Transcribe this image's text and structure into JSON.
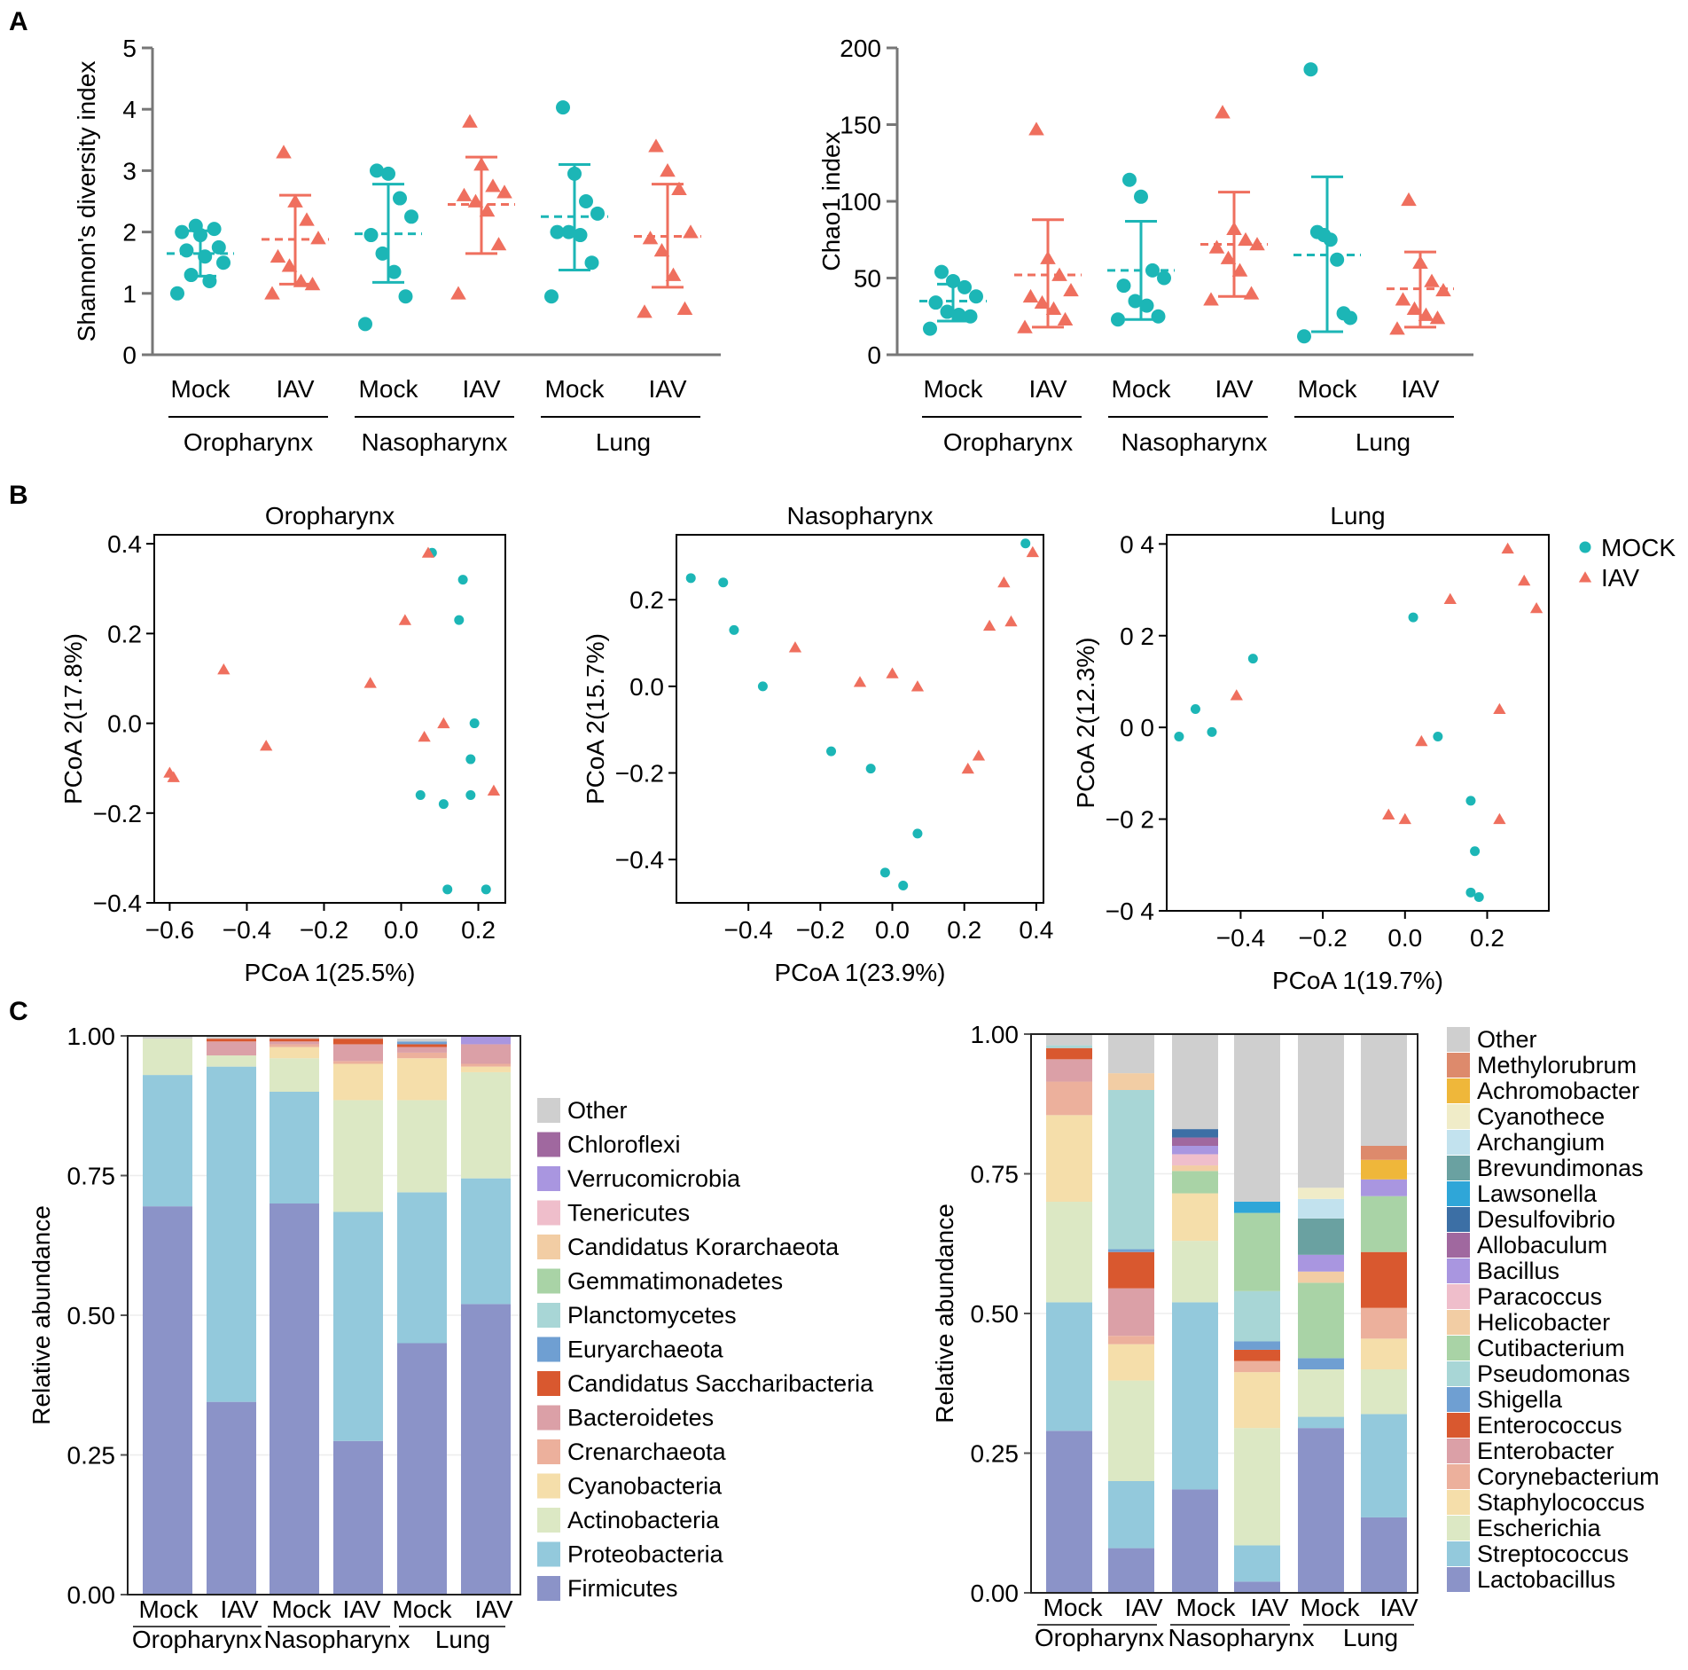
{
  "colors": {
    "mock": "#1cb6b6",
    "iav": "#ef6f5e",
    "axis": "#777777"
  },
  "panel_labels": [
    "A",
    "B",
    "C"
  ],
  "group_labels": {
    "samples": [
      "Mock",
      "IAV",
      "Mock",
      "IAV",
      "Mock",
      "IAV"
    ],
    "sites": [
      "Oropharynx",
      "Nasopharynx",
      "Lung"
    ]
  },
  "legend_b": [
    {
      "name": "MOCK",
      "series": "mock"
    },
    {
      "name": "IAV",
      "series": "iav"
    }
  ],
  "chart_data": [
    {
      "id": "shannon",
      "type": "scatter",
      "ylabel": "Shannon's diversity index",
      "ylim": [
        0,
        5
      ],
      "yticks": [
        0,
        1,
        2,
        3,
        4,
        5
      ],
      "groups": [
        {
          "label": "Mock",
          "series": "mock",
          "mean": 1.65,
          "lo": 1.28,
          "hi": 2.02,
          "points": [
            1.0,
            1.2,
            1.3,
            1.5,
            1.6,
            1.7,
            1.75,
            1.95,
            2.0,
            2.05,
            2.1
          ]
        },
        {
          "label": "IAV",
          "series": "iav",
          "mean": 1.88,
          "lo": 1.15,
          "hi": 2.6,
          "points": [
            1.0,
            1.15,
            1.2,
            1.45,
            1.6,
            1.9,
            2.2,
            2.5,
            3.3
          ]
        },
        {
          "label": "Mock",
          "series": "mock",
          "mean": 1.97,
          "lo": 1.18,
          "hi": 2.78,
          "points": [
            0.5,
            0.95,
            1.35,
            1.65,
            1.95,
            2.25,
            2.55,
            2.95,
            3.0
          ]
        },
        {
          "label": "IAV",
          "series": "iav",
          "mean": 2.45,
          "lo": 1.65,
          "hi": 3.22,
          "points": [
            1.0,
            1.8,
            2.35,
            2.5,
            2.6,
            2.65,
            2.75,
            3.1,
            3.8
          ]
        },
        {
          "label": "Mock",
          "series": "mock",
          "mean": 2.25,
          "lo": 1.38,
          "hi": 3.1,
          "points": [
            0.95,
            1.5,
            1.95,
            2.0,
            2.0,
            2.3,
            2.5,
            2.95,
            4.03
          ]
        },
        {
          "label": "IAV",
          "series": "iav",
          "mean": 1.93,
          "lo": 1.1,
          "hi": 2.78,
          "points": [
            0.7,
            0.75,
            1.3,
            1.7,
            1.9,
            2.0,
            2.7,
            3.0,
            3.4
          ]
        }
      ]
    },
    {
      "id": "chao1",
      "type": "scatter",
      "ylabel": "Chao1 index",
      "ylim": [
        0,
        200
      ],
      "yticks": [
        0,
        50,
        100,
        150,
        200
      ],
      "groups": [
        {
          "label": "Mock",
          "series": "mock",
          "mean": 35,
          "lo": 22,
          "hi": 46,
          "points": [
            17,
            25,
            26,
            28,
            34,
            38,
            44,
            48,
            54
          ]
        },
        {
          "label": "IAV",
          "series": "iav",
          "mean": 52,
          "lo": 18,
          "hi": 88,
          "points": [
            18,
            23,
            30,
            34,
            38,
            42,
            52,
            63,
            147
          ]
        },
        {
          "label": "Mock",
          "series": "mock",
          "mean": 55,
          "lo": 23,
          "hi": 87,
          "points": [
            23,
            25,
            32,
            35,
            45,
            50,
            55,
            103,
            114
          ]
        },
        {
          "label": "IAV",
          "series": "iav",
          "mean": 72,
          "lo": 38,
          "hi": 106,
          "points": [
            36,
            40,
            55,
            63,
            70,
            72,
            75,
            82,
            158
          ]
        },
        {
          "label": "Mock",
          "series": "mock",
          "mean": 65,
          "lo": 15,
          "hi": 116,
          "points": [
            12,
            24,
            27,
            62,
            75,
            78,
            80,
            186
          ]
        },
        {
          "label": "IAV",
          "series": "iav",
          "mean": 43,
          "lo": 18,
          "hi": 67,
          "points": [
            17,
            24,
            26,
            30,
            36,
            42,
            48,
            60,
            101
          ]
        }
      ]
    },
    {
      "id": "pcoa_oro",
      "type": "scatter",
      "title": "Oropharynx",
      "xlabel": "PCoA 1(25.5%)",
      "ylabel": "PCoA 2(17.8%)",
      "xlim": [
        -0.64,
        0.27
      ],
      "ylim": [
        -0.4,
        0.42
      ],
      "xticks": [
        -0.6,
        -0.4,
        -0.2,
        0.0,
        0.2
      ],
      "xtick_labels": [
        "−0.6",
        "−0.4",
        "−0.2",
        "0.0",
        "0.2"
      ],
      "yticks": [
        -0.4,
        -0.2,
        0.0,
        0.2,
        0.4
      ],
      "ytick_labels": [
        "−0.4",
        "−0.2",
        "0.0",
        "0.2",
        "0.4"
      ],
      "mock": [
        [
          0.08,
          0.38
        ],
        [
          0.16,
          0.32
        ],
        [
          0.15,
          0.23
        ],
        [
          0.19,
          0.0
        ],
        [
          0.18,
          -0.08
        ],
        [
          0.18,
          -0.16
        ],
        [
          0.05,
          -0.16
        ],
        [
          0.11,
          -0.18
        ],
        [
          0.12,
          -0.37
        ],
        [
          0.22,
          -0.37
        ]
      ],
      "iav": [
        [
          0.07,
          0.38
        ],
        [
          0.01,
          0.23
        ],
        [
          -0.46,
          0.12
        ],
        [
          -0.08,
          0.09
        ],
        [
          -0.35,
          -0.05
        ],
        [
          -0.6,
          -0.11
        ],
        [
          -0.59,
          -0.12
        ],
        [
          0.11,
          0.0
        ],
        [
          0.06,
          -0.03
        ],
        [
          0.24,
          -0.15
        ]
      ]
    },
    {
      "id": "pcoa_naso",
      "type": "scatter",
      "title": "Nasopharynx",
      "xlabel": "PCoA 1(23.9%)",
      "ylabel": "PCoA 2(15.7%)",
      "xlim": [
        -0.6,
        0.42
      ],
      "ylim": [
        -0.5,
        0.35
      ],
      "xticks": [
        -0.4,
        -0.2,
        0.0,
        0.2,
        0.4
      ],
      "xtick_labels": [
        "−0.4",
        "−0.2",
        "0.0",
        "0.2",
        "0.4"
      ],
      "yticks": [
        -0.4,
        -0.2,
        0.0,
        0.2
      ],
      "ytick_labels": [
        "−0.4",
        "−0.2",
        "0.0",
        "0.2"
      ],
      "mock": [
        [
          -0.56,
          0.25
        ],
        [
          -0.47,
          0.24
        ],
        [
          -0.44,
          0.13
        ],
        [
          -0.36,
          0.0
        ],
        [
          -0.17,
          -0.15
        ],
        [
          -0.06,
          -0.19
        ],
        [
          -0.02,
          -0.43
        ],
        [
          0.03,
          -0.46
        ],
        [
          0.07,
          -0.34
        ],
        [
          0.37,
          0.33
        ]
      ],
      "iav": [
        [
          -0.27,
          0.09
        ],
        [
          -0.09,
          0.01
        ],
        [
          0.0,
          0.03
        ],
        [
          0.07,
          0.0
        ],
        [
          0.21,
          -0.19
        ],
        [
          0.24,
          -0.16
        ],
        [
          0.27,
          0.14
        ],
        [
          0.33,
          0.15
        ],
        [
          0.31,
          0.24
        ],
        [
          0.39,
          0.31
        ]
      ]
    },
    {
      "id": "pcoa_lung",
      "type": "scatter",
      "title": "Lung",
      "xlabel": "PCoA 1(19.7%)",
      "ylabel": "PCoA 2(12.3%)",
      "xlim": [
        -0.58,
        0.35
      ],
      "ylim": [
        -0.4,
        0.42
      ],
      "xticks": [
        -0.4,
        -0.2,
        0.0,
        0.2
      ],
      "xtick_labels": [
        "−0.4",
        "−0.2",
        "0.0",
        "0.2"
      ],
      "yticks": [
        -0.4,
        -0.2,
        0.0,
        0.2,
        0.4
      ],
      "ytick_labels": [
        "−0 4",
        "−0 2",
        "0 0",
        "0 2",
        "0 4"
      ],
      "mock": [
        [
          -0.55,
          -0.02
        ],
        [
          -0.51,
          0.04
        ],
        [
          -0.47,
          -0.01
        ],
        [
          -0.37,
          0.15
        ],
        [
          0.02,
          0.24
        ],
        [
          0.08,
          -0.02
        ],
        [
          0.16,
          -0.16
        ],
        [
          0.17,
          -0.27
        ],
        [
          0.16,
          -0.36
        ],
        [
          0.18,
          -0.37
        ]
      ],
      "iav": [
        [
          -0.41,
          0.07
        ],
        [
          -0.04,
          -0.19
        ],
        [
          0.0,
          -0.2
        ],
        [
          0.04,
          -0.03
        ],
        [
          0.11,
          0.28
        ],
        [
          0.23,
          0.04
        ],
        [
          0.23,
          -0.2
        ],
        [
          0.25,
          0.39
        ],
        [
          0.29,
          0.32
        ],
        [
          0.32,
          0.26
        ]
      ]
    },
    {
      "id": "phylum",
      "type": "bar",
      "stacked": true,
      "ylabel": "Relative abundance",
      "ylim": [
        0,
        1
      ],
      "yticks": [
        0,
        0.25,
        0.5,
        0.75,
        1
      ],
      "ytick_labels": [
        "0.00",
        "0.25",
        "0.50",
        "0.75",
        "1.00"
      ],
      "series": [
        {
          "name": "Firmicutes",
          "color": "#8b93c8",
          "values": [
            0.695,
            0.345,
            0.7,
            0.275,
            0.45,
            0.52
          ]
        },
        {
          "name": "Proteobacteria",
          "color": "#93c9dc",
          "values": [
            0.235,
            0.6,
            0.2,
            0.41,
            0.27,
            0.225
          ]
        },
        {
          "name": "Actinobacteria",
          "color": "#dce8c4",
          "values": [
            0.065,
            0.02,
            0.06,
            0.2,
            0.165,
            0.19
          ]
        },
        {
          "name": "Cyanobacteria",
          "color": "#f5deaa",
          "values": [
            0,
            0,
            0.02,
            0.065,
            0.075,
            0.01
          ]
        },
        {
          "name": "Crenarchaeota",
          "color": "#ecb09c",
          "values": [
            0,
            0,
            0.005,
            0.005,
            0.01,
            0.005
          ]
        },
        {
          "name": "Bacteroidetes",
          "color": "#dba0a7",
          "values": [
            0,
            0.025,
            0.005,
            0.03,
            0.01,
            0.035
          ]
        },
        {
          "name": "Candidatus Saccharibacteria",
          "color": "#d9582f",
          "values": [
            0,
            0.005,
            0.005,
            0.01,
            0.005,
            0
          ]
        },
        {
          "name": "Euryarchaeota",
          "color": "#6f9fd2",
          "values": [
            0,
            0,
            0,
            0,
            0.005,
            0
          ]
        },
        {
          "name": "Planctomycetes",
          "color": "#a8d6d6",
          "values": [
            0,
            0,
            0,
            0,
            0,
            0
          ]
        },
        {
          "name": "Gemmatimonadetes",
          "color": "#a9d3a6",
          "values": [
            0,
            0,
            0,
            0,
            0,
            0
          ]
        },
        {
          "name": "Candidatus Korarchaeota",
          "color": "#f2cda4",
          "values": [
            0,
            0,
            0,
            0,
            0,
            0
          ]
        },
        {
          "name": "Tenericutes",
          "color": "#efbecb",
          "values": [
            0,
            0,
            0,
            0,
            0,
            0
          ]
        },
        {
          "name": "Verrucomicrobia",
          "color": "#a996e0",
          "values": [
            0,
            0,
            0,
            0,
            0,
            0.015
          ]
        },
        {
          "name": "Chloroflexi",
          "color": "#a0689f",
          "values": [
            0,
            0,
            0,
            0,
            0,
            0
          ]
        },
        {
          "name": "Other",
          "color": "#cfcfcf",
          "values": [
            0.005,
            0.005,
            0.005,
            0.005,
            0.005,
            0
          ]
        }
      ]
    },
    {
      "id": "genus",
      "type": "bar",
      "stacked": true,
      "ylabel": "Relative abundance",
      "ylim": [
        0,
        1
      ],
      "yticks": [
        0,
        0.25,
        0.5,
        0.75,
        1
      ],
      "ytick_labels": [
        "0.00",
        "0.25",
        "0.50",
        "0.75",
        "1.00"
      ],
      "series": [
        {
          "name": "Lactobacillus",
          "color": "#8b93c8",
          "values": [
            0.29,
            0.08,
            0.185,
            0.02,
            0.295,
            0.135
          ]
        },
        {
          "name": "Streptococcus",
          "color": "#93c9dc",
          "values": [
            0.23,
            0.12,
            0.335,
            0.065,
            0.02,
            0.185
          ]
        },
        {
          "name": "Escherichia",
          "color": "#dce8c4",
          "values": [
            0.18,
            0.18,
            0.11,
            0.21,
            0.085,
            0.08
          ]
        },
        {
          "name": "Staphylococcus",
          "color": "#f5deaa",
          "values": [
            0.155,
            0.065,
            0.085,
            0.1,
            0,
            0.055
          ]
        },
        {
          "name": "Corynebacterium",
          "color": "#ecb09c",
          "values": [
            0.06,
            0.015,
            0,
            0.02,
            0,
            0.055
          ]
        },
        {
          "name": "Enterobacter",
          "color": "#dba0a7",
          "values": [
            0.04,
            0.085,
            0,
            0,
            0,
            0
          ]
        },
        {
          "name": "Enterococcus",
          "color": "#d9582f",
          "values": [
            0.02,
            0.065,
            0,
            0.02,
            0,
            0.1
          ]
        },
        {
          "name": "Shigella",
          "color": "#6f9fd2",
          "values": [
            0,
            0.005,
            0,
            0.015,
            0.02,
            0
          ]
        },
        {
          "name": "Pseudomonas",
          "color": "#a8d6d6",
          "values": [
            0.005,
            0.285,
            0,
            0.09,
            0,
            0
          ]
        },
        {
          "name": "Cutibacterium",
          "color": "#a9d3a6",
          "values": [
            0,
            0,
            0.04,
            0.14,
            0.135,
            0.1
          ]
        },
        {
          "name": "Helicobacter",
          "color": "#f2cda4",
          "values": [
            0,
            0.03,
            0.01,
            0,
            0.02,
            0
          ]
        },
        {
          "name": "Paracoccus",
          "color": "#efbecb",
          "values": [
            0,
            0,
            0.02,
            0,
            0,
            0
          ]
        },
        {
          "name": "Bacillus",
          "color": "#a996e0",
          "values": [
            0,
            0,
            0.015,
            0,
            0.03,
            0.03
          ]
        },
        {
          "name": "Allobaculum",
          "color": "#a0689f",
          "values": [
            0,
            0,
            0.015,
            0,
            0,
            0
          ]
        },
        {
          "name": "Desulfovibrio",
          "color": "#3c6fa5",
          "values": [
            0,
            0,
            0.015,
            0,
            0,
            0
          ]
        },
        {
          "name": "Lawsonella",
          "color": "#2fa6d8",
          "values": [
            0,
            0,
            0,
            0.02,
            0,
            0
          ]
        },
        {
          "name": "Brevundimonas",
          "color": "#6aa1a1",
          "values": [
            0,
            0,
            0,
            0,
            0.065,
            0
          ]
        },
        {
          "name": "Archangium",
          "color": "#c2e2ee",
          "values": [
            0,
            0,
            0,
            0,
            0.035,
            0
          ]
        },
        {
          "name": "Cyanothece",
          "color": "#f0ecc8",
          "values": [
            0,
            0,
            0,
            0,
            0.02,
            0
          ]
        },
        {
          "name": "Achromobacter",
          "color": "#efb73a",
          "values": [
            0,
            0,
            0,
            0,
            0,
            0.035
          ]
        },
        {
          "name": "Methylorubrum",
          "color": "#dd8a6c",
          "values": [
            0,
            0,
            0,
            0,
            0,
            0.025
          ]
        },
        {
          "name": "Other",
          "color": "#cfcfcf",
          "values": [
            0.02,
            0.07,
            0.17,
            0.3,
            0.275,
            0.2
          ]
        }
      ]
    }
  ]
}
